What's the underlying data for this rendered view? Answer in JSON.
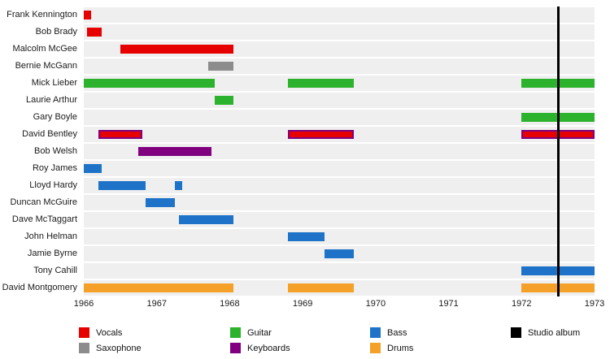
{
  "chart_data": {
    "type": "timeline",
    "title": "",
    "x_axis": {
      "min": 1966,
      "max": 1973,
      "ticks": [
        "1966",
        "1967",
        "1968",
        "1969",
        "1970",
        "1971",
        "1972",
        "1973"
      ]
    },
    "colors": {
      "vocals": "#e60000",
      "saxophone": "#8c8c8c",
      "guitar": "#2cb22c",
      "keyboards": "#800080",
      "bass": "#1e73c8",
      "drums": "#f5a029",
      "studio_album": "#000000",
      "row_stripe": "#efefef"
    },
    "legend": [
      {
        "label": "Vocals",
        "color": "#e60000"
      },
      {
        "label": "Guitar",
        "color": "#2cb22c"
      },
      {
        "label": "Bass",
        "color": "#1e73c8"
      },
      {
        "label": "Studio album",
        "color": "#000000"
      },
      {
        "label": "Saxophone",
        "color": "#8c8c8c"
      },
      {
        "label": "Keyboards",
        "color": "#800080"
      },
      {
        "label": "Drums",
        "color": "#f5a029"
      }
    ],
    "members": [
      {
        "name": "Frank Kennington",
        "bars": [
          {
            "start": 1966.0,
            "end": 1966.1,
            "color": "#e60000"
          }
        ]
      },
      {
        "name": "Bob Brady",
        "bars": [
          {
            "start": 1966.05,
            "end": 1966.25,
            "color": "#e60000"
          }
        ]
      },
      {
        "name": "Malcolm McGee",
        "bars": [
          {
            "start": 1966.5,
            "end": 1968.05,
            "color": "#e60000"
          }
        ]
      },
      {
        "name": "Bernie McGann",
        "bars": [
          {
            "start": 1967.7,
            "end": 1968.05,
            "color": "#8c8c8c"
          }
        ]
      },
      {
        "name": "Mick Lieber",
        "bars": [
          {
            "start": 1966.0,
            "end": 1967.8,
            "color": "#2cb22c"
          },
          {
            "start": 1968.8,
            "end": 1969.7,
            "color": "#2cb22c"
          },
          {
            "start": 1972.0,
            "end": 1973.0,
            "color": "#2cb22c"
          }
        ]
      },
      {
        "name": "Laurie Arthur",
        "bars": [
          {
            "start": 1967.8,
            "end": 1968.05,
            "color": "#2cb22c"
          }
        ]
      },
      {
        "name": "Gary Boyle",
        "bars": [
          {
            "start": 1972.0,
            "end": 1973.0,
            "color": "#2cb22c"
          }
        ]
      },
      {
        "name": "David Bentley",
        "bars": [
          {
            "start": 1966.2,
            "end": 1966.8,
            "color": "#e60000",
            "border": "#800080"
          },
          {
            "start": 1968.8,
            "end": 1969.7,
            "color": "#e60000",
            "border": "#800080"
          },
          {
            "start": 1972.0,
            "end": 1973.0,
            "color": "#e60000",
            "border": "#800080"
          }
        ]
      },
      {
        "name": "Bob Welsh",
        "bars": [
          {
            "start": 1966.75,
            "end": 1967.75,
            "color": "#800080"
          }
        ]
      },
      {
        "name": "Roy James",
        "bars": [
          {
            "start": 1966.0,
            "end": 1966.25,
            "color": "#1e73c8"
          }
        ]
      },
      {
        "name": "Lloyd Hardy",
        "bars": [
          {
            "start": 1966.2,
            "end": 1966.85,
            "color": "#1e73c8"
          },
          {
            "start": 1967.25,
            "end": 1967.35,
            "color": "#1e73c8"
          }
        ]
      },
      {
        "name": "Duncan McGuire",
        "bars": [
          {
            "start": 1966.85,
            "end": 1967.25,
            "color": "#1e73c8"
          }
        ]
      },
      {
        "name": "Dave McTaggart",
        "bars": [
          {
            "start": 1967.3,
            "end": 1968.05,
            "color": "#1e73c8"
          }
        ]
      },
      {
        "name": "John Helman",
        "bars": [
          {
            "start": 1968.8,
            "end": 1969.3,
            "color": "#1e73c8"
          }
        ]
      },
      {
        "name": "Jamie Byrne",
        "bars": [
          {
            "start": 1969.3,
            "end": 1969.7,
            "color": "#1e73c8"
          }
        ]
      },
      {
        "name": "Tony Cahill",
        "bars": [
          {
            "start": 1972.0,
            "end": 1973.0,
            "color": "#1e73c8"
          }
        ]
      },
      {
        "name": "David Montgomery",
        "bars": [
          {
            "start": 1966.0,
            "end": 1968.05,
            "color": "#f5a029"
          },
          {
            "start": 1968.8,
            "end": 1969.7,
            "color": "#f5a029"
          },
          {
            "start": 1972.0,
            "end": 1973.0,
            "color": "#f5a029"
          }
        ]
      }
    ],
    "events": [
      {
        "label": "Studio album",
        "x": 1972.5
      }
    ]
  }
}
